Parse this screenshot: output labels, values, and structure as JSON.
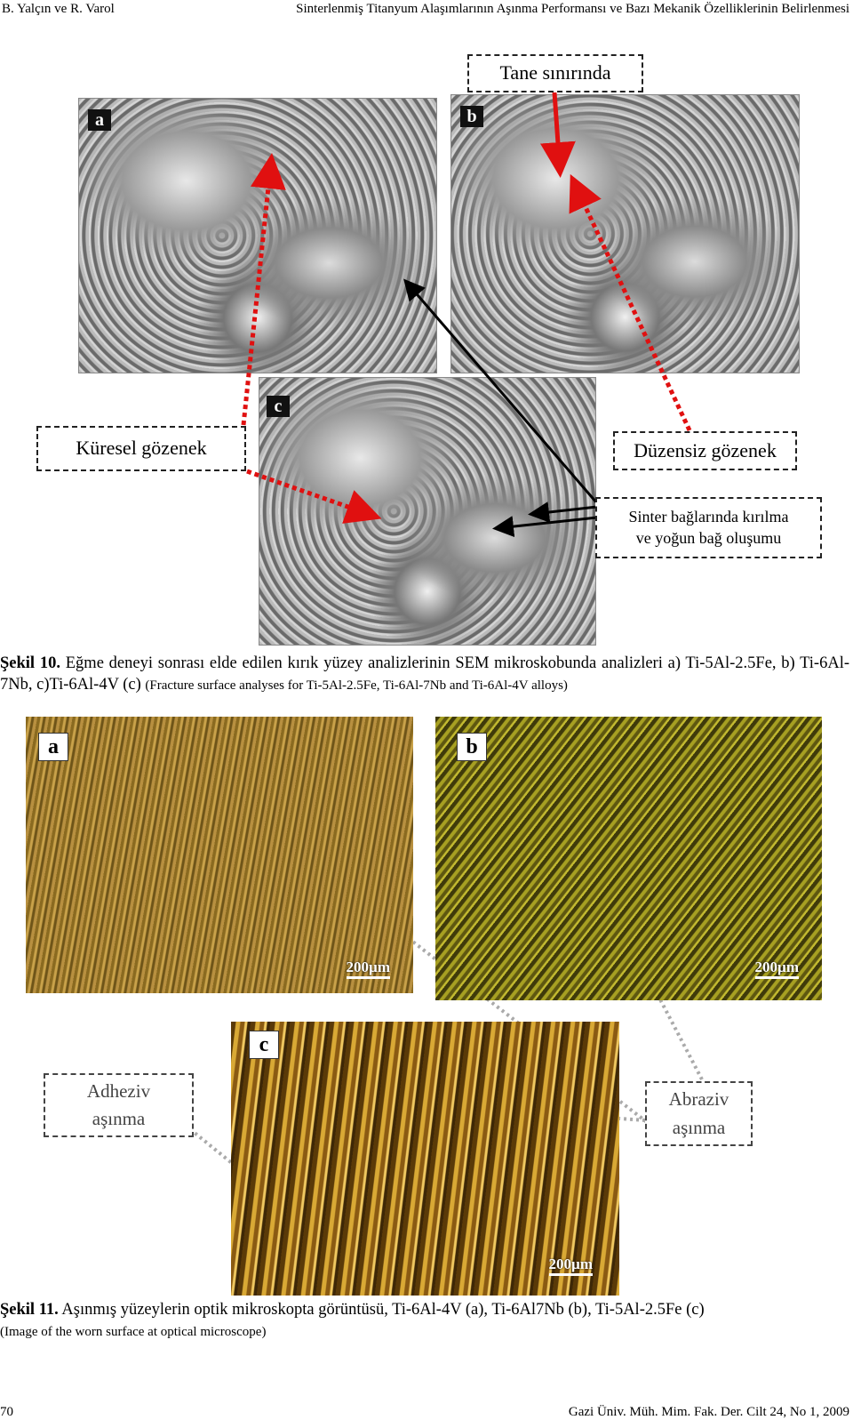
{
  "header": {
    "authors": "B. Yalçın ve R. Varol",
    "title": "Sinterlenmiş Titanyum Alaşımlarının Aşınma Performansı ve Bazı Mekanik Özelliklerinin Belirlenmesi"
  },
  "figure10": {
    "panels": [
      "a",
      "b",
      "c"
    ],
    "callouts": {
      "grain_boundary": "Tane sınırında",
      "spherical_pore": "Küresel gözenek",
      "irregular_pore": "Düzensiz gözenek",
      "sinter_line1": "Sinter bağlarında kırılma",
      "sinter_line2": "ve yoğun bağ oluşumu"
    },
    "caption": {
      "label": "Şekil 10.",
      "text": "Eğme deneyi sonrası elde edilen kırık yüzey analizlerinin SEM mikroskobunda analizleri a) Ti-5Al-2.5Fe, b) Ti-6Al-7Nb, c)Ti-6Al-4V (c)",
      "translation": "(Fracture surface analyses for Ti-5Al-2.5Fe, Ti-6Al-7Nb and Ti-6Al-4V alloys)"
    }
  },
  "figure11": {
    "panels": [
      "a",
      "b",
      "c"
    ],
    "scale_bars": [
      "200µm",
      "200µm",
      "200µm"
    ],
    "callouts": {
      "adhesive_line1": "Adheziv",
      "adhesive_line2": "aşınma",
      "abrasive_line1": "Abraziv",
      "abrasive_line2": "aşınma"
    },
    "caption": {
      "label": "Şekil 11.",
      "text": "Aşınmış yüzeylerin optik mikroskopta görüntüsü, Ti-6Al-4V (a), Ti-6Al7Nb (b), Ti-5Al-2.5Fe (c)",
      "translation": "(Image of the worn surface at optical microscope)"
    }
  },
  "footer": {
    "page": "70",
    "journal": "Gazi Üniv. Müh. Mim. Fak. Der. Cilt 24, No 1, 2009"
  }
}
